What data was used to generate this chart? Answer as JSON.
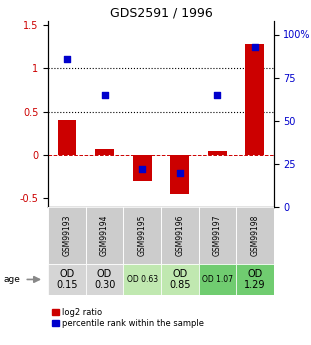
{
  "title": "GDS2591 / 1996",
  "samples": [
    "GSM99193",
    "GSM99194",
    "GSM99195",
    "GSM99196",
    "GSM99197",
    "GSM99198"
  ],
  "log2_ratio": [
    0.4,
    0.07,
    -0.3,
    -0.45,
    0.05,
    1.28
  ],
  "percentile_rank": [
    86,
    65,
    22,
    20,
    65,
    93
  ],
  "bar_color": "#cc0000",
  "dot_color": "#0000cc",
  "ylim_left": [
    -0.6,
    1.55
  ],
  "ylim_right": [
    0,
    108
  ],
  "yticks_left": [
    -0.5,
    0.0,
    0.5,
    1.0,
    1.5
  ],
  "yticks_right": [
    0,
    25,
    50,
    75,
    100
  ],
  "yticklabels_left": [
    "-0.5",
    "0",
    "0.5",
    "1",
    "1.5"
  ],
  "yticklabels_right": [
    "0",
    "25",
    "50",
    "75",
    "100%"
  ],
  "age_values": [
    "OD\n0.15",
    "OD\n0.30",
    "OD 0.63",
    "OD\n0.85",
    "OD 1.07",
    "OD\n1.29"
  ],
  "age_large_idx": [
    0,
    1,
    3,
    5
  ],
  "age_small_idx": [
    2,
    4
  ],
  "cell_colors": [
    "#d5d5d5",
    "#d5d5d5",
    "#c0e8b0",
    "#c0e8b0",
    "#70cc70",
    "#70cc70"
  ],
  "gsm_cell_color": "#cccccc",
  "legend_log2": "log2 ratio",
  "legend_pct": "percentile rank within the sample",
  "bar_width": 0.5,
  "dot_size": 18,
  "background_color": "#ffffff",
  "title_fontsize": 9,
  "tick_fontsize": 7,
  "gsm_fontsize": 5.5,
  "age_large_fontsize": 7,
  "age_small_fontsize": 5.5,
  "legend_fontsize": 6
}
